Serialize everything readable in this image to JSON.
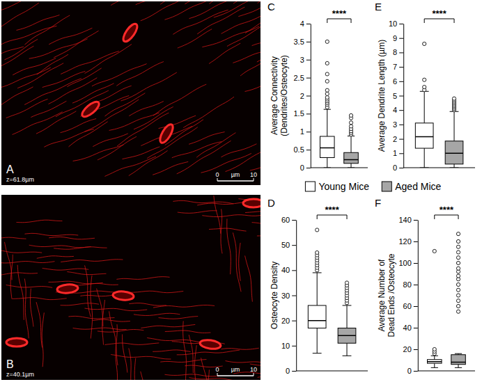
{
  "images": [
    {
      "panel_label": "A",
      "z_label": "z=61.8µm",
      "scale_bar_labels": [
        "0",
        "µm",
        "10"
      ]
    },
    {
      "panel_label": "B",
      "z_label": "z=40.1µm",
      "scale_bar_labels": [
        "0",
        "µm",
        "10"
      ]
    }
  ],
  "groups": [
    {
      "name": "Young Mice",
      "color": "#ffffff"
    },
    {
      "name": "Aged Mice",
      "color": "#a6a6a6"
    }
  ],
  "chart_data": [
    {
      "type": "box",
      "panel_label": "C",
      "y_label": "Average Connectivity (Dendrites/Osteocyte)",
      "ylim": [
        0,
        4
      ],
      "yticks": [
        0,
        0.5,
        1,
        1.5,
        2,
        2.5,
        3,
        3.5,
        4
      ],
      "significance": "****",
      "boxes": [
        {
          "min": 0,
          "q1": 0.28,
          "median": 0.55,
          "q3": 0.87,
          "max": 1.62,
          "outliers": [
            1.68,
            1.75,
            1.8,
            1.85,
            1.9,
            1.95,
            2.05,
            2.15,
            2.4,
            2.6,
            2.9,
            3.5
          ]
        },
        {
          "min": 0,
          "q1": 0.12,
          "median": 0.22,
          "q3": 0.42,
          "max": 0.88,
          "outliers": [
            0.92,
            0.97,
            1.02,
            1.08,
            1.15,
            1.25,
            1.38,
            1.45
          ]
        }
      ]
    },
    {
      "type": "box",
      "panel_label": "E",
      "y_label": "Average Dendrite Length (µm)",
      "ylim": [
        0,
        10
      ],
      "yticks": [
        0,
        1,
        2,
        3,
        4,
        5,
        6,
        7,
        8,
        9,
        10
      ],
      "significance": "****",
      "boxes": [
        {
          "min": 0,
          "q1": 1.35,
          "median": 2.15,
          "q3": 3.1,
          "max": 5.3,
          "outliers": [
            5.4,
            5.6,
            6.1,
            8.6
          ]
        },
        {
          "min": 0,
          "q1": 0.25,
          "median": 1.0,
          "q3": 1.85,
          "max": 3.9,
          "outliers": [
            4.0,
            4.1,
            4.2,
            4.3,
            4.4,
            4.5,
            4.6,
            4.7,
            4.8
          ]
        }
      ]
    },
    {
      "type": "box",
      "panel_label": "D",
      "y_label": "Osteocyte Density",
      "ylim": [
        0,
        60
      ],
      "yticks": [
        0,
        10,
        20,
        30,
        40,
        50,
        60
      ],
      "significance": "****",
      "boxes": [
        {
          "min": 7,
          "q1": 17,
          "median": 20,
          "q3": 26,
          "max": 39,
          "outliers": [
            40,
            41,
            42,
            43,
            44,
            45,
            46,
            47,
            56
          ]
        },
        {
          "min": 6,
          "q1": 11,
          "median": 14,
          "q3": 17,
          "max": 26,
          "outliers": [
            27,
            28,
            29,
            30,
            31,
            32,
            33,
            34,
            35
          ]
        }
      ]
    },
    {
      "type": "box",
      "panel_label": "F",
      "y_label": "Average Number of Dead Ends /Osteocyte",
      "ylim": [
        0,
        140
      ],
      "yticks": [
        0,
        20,
        40,
        60,
        80,
        100,
        120,
        140
      ],
      "significance": "****",
      "boxes": [
        {
          "min": 3,
          "q1": 7,
          "median": 8.5,
          "q3": 10.5,
          "max": 14,
          "outliers": [
            16,
            18,
            20,
            111
          ]
        },
        {
          "min": 3,
          "q1": 6,
          "median": 8,
          "q3": 15,
          "max": 16,
          "outliers": [
            55,
            60,
            65,
            70,
            75,
            80,
            85,
            88,
            92,
            95,
            100,
            105,
            110,
            115,
            120,
            127
          ]
        }
      ]
    }
  ]
}
